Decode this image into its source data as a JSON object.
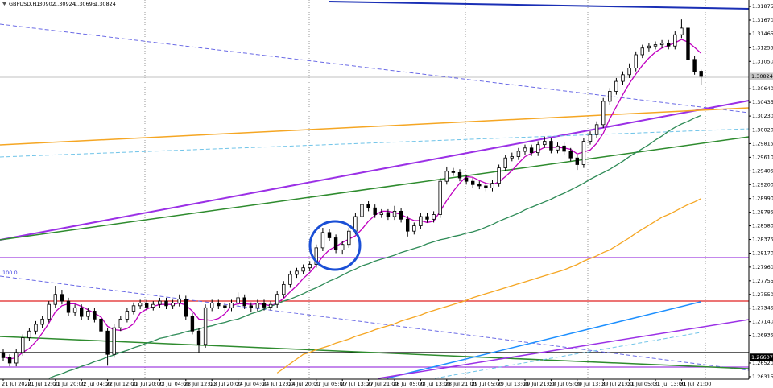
{
  "chart_data": {
    "type": "candlestick",
    "title": "GBPUSD,H1",
    "annotation": "100.0",
    "up_color": "#ffffff",
    "down_color": "#000000",
    "ylim": [
      1.2629,
      1.31972
    ],
    "yticks": [
      1.31875,
      {
        "value": 1.3167,
        "label": "1.31670"
      },
      1.31465,
      1.31255,
      {
        "value": 1.3105,
        "label": "1.31050"
      },
      {
        "value": 1.3064,
        "label": "1.30640"
      },
      1.30435,
      {
        "value": 1.3023,
        "label": "1.30230"
      },
      {
        "value": 1.3002,
        "label": "1.30020"
      },
      1.29815,
      {
        "value": 1.2961,
        "label": "1.29610"
      },
      1.29405,
      {
        "value": 1.292,
        "label": "1.29200"
      },
      {
        "value": 1.2899,
        "label": "1.28990"
      },
      1.28785,
      {
        "value": 1.2858,
        "label": "1.28580"
      },
      1.28375,
      {
        "value": 1.2817,
        "label": "1.28170"
      },
      {
        "value": 1.2796,
        "label": "1.27960"
      },
      1.27755,
      {
        "value": 1.2755,
        "label": "1.27550"
      },
      1.27345,
      {
        "value": 1.2714,
        "label": "1.27140"
      },
      1.26935,
      {
        "value": 1.2652,
        "label": "1.26520"
      },
      1.26315
    ],
    "price_markers": [
      {
        "value": 1.30824,
        "color": "#c8c8c8",
        "text_color": "#000000"
      },
      {
        "value": 1.26607,
        "color": "#000000",
        "text_color": "#ffffff"
      }
    ],
    "categories": [
      "21 Jul 2020",
      null,
      null,
      null,
      "21 Jul 12:00",
      null,
      null,
      null,
      "21 Jul 20:00",
      null,
      null,
      null,
      "22 Jul 04:00",
      null,
      null,
      null,
      "22 Jul 12:00",
      null,
      null,
      null,
      "22 Jul 20:00",
      null,
      null,
      null,
      "23 Jul 04:00",
      null,
      null,
      null,
      "23 Jul 12:00",
      null,
      null,
      null,
      "23 Jul 20:00",
      null,
      null,
      null,
      "24 Jul 04:00",
      null,
      null,
      null,
      "24 Jul 12:00",
      null,
      null,
      null,
      "24 Jul 20:00",
      null,
      null,
      null,
      "27 Jul 05:00",
      null,
      null,
      null,
      "27 Jul 13:00",
      null,
      null,
      null,
      "27 Jul 21:00",
      null,
      null,
      null,
      "28 Jul 05:00",
      null,
      null,
      null,
      "28 Jul 13:00",
      null,
      null,
      null,
      "28 Jul 21:00",
      null,
      null,
      null,
      "29 Jul 05:00",
      null,
      null,
      null,
      "29 Jul 13:00",
      null,
      null,
      null,
      "29 Jul 21:00",
      null,
      null,
      null,
      "30 Jul 05:00",
      null,
      null,
      null,
      "30 Jul 13:00",
      null,
      null,
      null,
      "30 Jul 21:00",
      null,
      null,
      null,
      "31 Jul 05:00",
      null,
      null,
      null,
      "31 Jul 13:00",
      null,
      null,
      null,
      "31 Jul 21:00",
      null,
      null,
      null
    ],
    "open": [
      1.2668,
      1.266,
      1.2652,
      1.2668,
      1.269,
      1.27,
      1.271,
      1.2718,
      1.274,
      1.2755,
      1.2745,
      1.2728,
      1.2735,
      1.2722,
      1.273,
      1.2718,
      1.27,
      1.2665,
      1.2705,
      1.2718,
      1.273,
      1.2738,
      1.2742,
      1.2736,
      1.274,
      1.2745,
      1.2738,
      1.2742,
      1.2748,
      1.2722,
      1.27,
      1.268,
      1.2735,
      1.2742,
      1.2738,
      1.2735,
      1.2742,
      1.275,
      1.2738,
      1.2735,
      1.2742,
      1.2736,
      1.274,
      1.2755,
      1.277,
      1.2785,
      1.279,
      1.2795,
      1.28,
      1.2825,
      1.2848,
      1.284,
      1.2822,
      1.283,
      1.285,
      1.2872,
      1.289,
      1.2885,
      1.2875,
      1.2878,
      1.2872,
      1.288,
      1.2868,
      1.285,
      1.2858,
      1.2872,
      1.2868,
      1.2875,
      1.2925,
      1.294,
      1.2938,
      1.293,
      1.2925,
      1.292,
      1.2918,
      1.2915,
      1.2922,
      1.2945,
      1.296,
      1.2962,
      1.297,
      1.2975,
      1.2968,
      1.298,
      1.2985,
      1.2972,
      1.2978,
      1.297,
      1.296,
      1.295,
      1.2985,
      1.2995,
      1.301,
      1.3045,
      1.306,
      1.3075,
      1.3085,
      1.3095,
      1.3115,
      1.3125,
      1.3128,
      1.313,
      1.3132,
      1.3128,
      1.3145,
      1.3155,
      1.3108,
      1.30902
    ],
    "high": [
      1.2673,
      1.2665,
      1.2673,
      1.2695,
      1.2705,
      1.2715,
      1.2723,
      1.2745,
      1.2768,
      1.2762,
      1.275,
      1.274,
      1.274,
      1.2735,
      1.2735,
      1.2723,
      1.2705,
      1.271,
      1.2723,
      1.2735,
      1.2743,
      1.2747,
      1.2747,
      1.2745,
      1.275,
      1.275,
      1.2747,
      1.2755,
      1.2753,
      1.2727,
      1.2705,
      1.274,
      1.2747,
      1.2747,
      1.2743,
      1.2747,
      1.2758,
      1.2755,
      1.2743,
      1.2747,
      1.2747,
      1.2745,
      1.276,
      1.2775,
      1.279,
      1.2795,
      1.28,
      1.2805,
      1.283,
      1.2855,
      1.2853,
      1.2845,
      1.2835,
      1.2855,
      1.2877,
      1.2898,
      1.2895,
      1.289,
      1.2883,
      1.2883,
      1.2888,
      1.2885,
      1.2873,
      1.2863,
      1.2877,
      1.2877,
      1.288,
      1.293,
      1.2947,
      1.2945,
      1.2943,
      1.2935,
      1.293,
      1.2925,
      1.2923,
      1.2927,
      1.295,
      1.2965,
      1.2968,
      1.2975,
      1.298,
      1.298,
      1.2985,
      1.2992,
      1.299,
      1.2983,
      1.2983,
      1.2975,
      1.2965,
      1.299,
      1.3,
      1.3015,
      1.305,
      1.3065,
      1.308,
      1.309,
      1.3102,
      1.312,
      1.313,
      1.3133,
      1.3135,
      1.3137,
      1.3137,
      1.315,
      1.3168,
      1.316,
      1.3113,
      1.30924
    ],
    "low": [
      1.2655,
      1.2647,
      1.2647,
      1.2663,
      1.2685,
      1.2695,
      1.2705,
      1.2713,
      1.2735,
      1.274,
      1.2723,
      1.2723,
      1.2717,
      1.2717,
      1.2713,
      1.2695,
      1.2648,
      1.266,
      1.27,
      1.2713,
      1.2725,
      1.2733,
      1.2731,
      1.2731,
      1.2735,
      1.2733,
      1.2733,
      1.2737,
      1.2717,
      1.2695,
      1.2668,
      1.2675,
      1.273,
      1.2733,
      1.273,
      1.273,
      1.2737,
      1.2733,
      1.2728,
      1.273,
      1.2731,
      1.2731,
      1.2735,
      1.275,
      1.2765,
      1.278,
      1.2785,
      1.279,
      1.2795,
      1.282,
      1.2835,
      1.2817,
      1.2815,
      1.2825,
      1.2845,
      1.2867,
      1.288,
      1.287,
      1.287,
      1.2867,
      1.2867,
      1.2863,
      1.2842,
      1.2845,
      1.2853,
      1.2863,
      1.2863,
      1.287,
      1.292,
      1.2933,
      1.2925,
      1.292,
      1.2915,
      1.2913,
      1.291,
      1.291,
      1.2917,
      1.294,
      1.2955,
      1.2957,
      1.2965,
      1.2963,
      1.2963,
      1.2975,
      1.2967,
      1.2967,
      1.2965,
      1.2955,
      1.2942,
      1.2945,
      1.298,
      1.299,
      1.3005,
      1.304,
      1.3055,
      1.307,
      1.308,
      1.309,
      1.311,
      1.312,
      1.3123,
      1.3125,
      1.3123,
      1.3123,
      1.314,
      1.3103,
      1.3085,
      1.30695
    ],
    "close": [
      1.266,
      1.2652,
      1.2668,
      1.269,
      1.27,
      1.271,
      1.2718,
      1.274,
      1.2755,
      1.2745,
      1.2728,
      1.2735,
      1.2722,
      1.273,
      1.2718,
      1.27,
      1.2665,
      1.2705,
      1.2718,
      1.273,
      1.2738,
      1.2742,
      1.2736,
      1.274,
      1.2745,
      1.2738,
      1.2742,
      1.2748,
      1.2722,
      1.27,
      1.268,
      1.2735,
      1.2742,
      1.2738,
      1.2735,
      1.2742,
      1.275,
      1.2738,
      1.2735,
      1.2742,
      1.2736,
      1.274,
      1.2755,
      1.277,
      1.2785,
      1.279,
      1.2795,
      1.28,
      1.2825,
      1.2848,
      1.284,
      1.2822,
      1.283,
      1.285,
      1.2872,
      1.289,
      1.2885,
      1.2875,
      1.2878,
      1.2872,
      1.288,
      1.2868,
      1.285,
      1.2858,
      1.2872,
      1.2868,
      1.2875,
      1.2925,
      1.294,
      1.2938,
      1.293,
      1.2925,
      1.292,
      1.2918,
      1.2915,
      1.2922,
      1.2945,
      1.296,
      1.2962,
      1.297,
      1.2975,
      1.2968,
      1.298,
      1.2985,
      1.2972,
      1.2978,
      1.297,
      1.296,
      1.295,
      1.2985,
      1.2995,
      1.301,
      1.3045,
      1.306,
      1.3075,
      1.3085,
      1.3095,
      1.3115,
      1.3125,
      1.3128,
      1.313,
      1.3132,
      1.3128,
      1.3145,
      1.3155,
      1.3108,
      1.309,
      1.30824
    ],
    "series": [
      {
        "color": "#c000c0",
        "values": [
          1.2662,
          1.2658,
          1.266,
          1.2668,
          1.2674,
          1.2684,
          1.2697,
          1.2712,
          1.2729,
          1.2738,
          1.2741,
          1.2741,
          1.2737,
          1.2732,
          1.2727,
          1.2721,
          1.2707,
          1.2702,
          1.2701,
          1.2704,
          1.2711,
          1.2727,
          1.2733,
          1.2737,
          1.274,
          1.274,
          1.274,
          1.2742,
          1.2739,
          1.273,
          1.2718,
          1.2717,
          1.2716,
          1.2719,
          1.2726,
          1.2738,
          1.2741,
          1.2741,
          1.274,
          1.2741,
          1.274,
          1.2738,
          1.2742,
          1.2749,
          1.2759,
          1.2768,
          1.2779,
          1.2788,
          1.2799,
          1.2812,
          1.2822,
          1.2827,
          1.2833,
          1.2838,
          1.2843,
          1.2853,
          1.2865,
          1.2874,
          1.288,
          1.288,
          1.2878,
          1.2875,
          1.287,
          1.2866,
          1.2866,
          1.2863,
          1.2865,
          1.288,
          1.2896,
          1.291,
          1.2922,
          1.2932,
          1.2931,
          1.2926,
          1.2922,
          1.292,
          1.2924,
          1.2932,
          1.2941,
          1.2952,
          1.2962,
          1.2967,
          1.2971,
          1.2976,
          1.2976,
          1.2976,
          1.2975,
          1.2973,
          1.2966,
          1.2969,
          1.2972,
          1.2982,
          1.2997,
          1.3019,
          1.3037,
          1.3055,
          1.3072,
          1.3086,
          1.3099,
          1.311,
          1.3119,
          1.3125,
          1.3129,
          1.3133,
          1.3138,
          1.3134,
          1.3126,
          1.3117
        ]
      },
      {
        "color": "#2e8b57",
        "values": [
          null,
          null,
          null,
          null,
          null,
          null,
          null,
          1.2629,
          1.2633,
          1.2636,
          1.264,
          1.2643,
          1.2647,
          1.265,
          1.2654,
          1.2657,
          1.2661,
          1.2664,
          1.2668,
          1.2671,
          1.2675,
          1.2678,
          1.2682,
          1.2685,
          1.2689,
          1.2691,
          1.2694,
          1.2696,
          1.2699,
          1.2701,
          1.2703,
          1.2706,
          1.2708,
          1.2711,
          1.2713,
          1.2716,
          1.2718,
          1.2722,
          1.2726,
          1.2729,
          1.2733,
          1.2737,
          1.2741,
          1.2745,
          1.2748,
          1.2752,
          1.2756,
          1.2761,
          1.2765,
          1.277,
          1.2775,
          1.2779,
          1.2784,
          1.2789,
          1.2793,
          1.2798,
          1.2801,
          1.2805,
          1.2808,
          1.2811,
          1.2814,
          1.2818,
          1.2821,
          1.2824,
          1.2827,
          1.2831,
          1.2834,
          1.2837,
          1.2839,
          1.2842,
          1.2844,
          1.2847,
          1.2849,
          1.2852,
          1.2856,
          1.286,
          1.2865,
          1.2869,
          1.2873,
          1.2877,
          1.2882,
          1.2886,
          1.289,
          1.2894,
          1.2898,
          1.2903,
          1.2907,
          1.2912,
          1.2917,
          1.2922,
          1.2928,
          1.2933,
          1.2938,
          1.2943,
          1.2949,
          1.2955,
          1.2962,
          1.2968,
          1.2974,
          1.298,
          1.2987,
          1.2993,
          1.3,
          1.3006,
          1.3011,
          1.3015,
          1.302,
          1.3024
        ]
      },
      {
        "color": "#f5a623",
        "values": [
          null,
          null,
          null,
          null,
          null,
          null,
          null,
          null,
          null,
          null,
          null,
          null,
          null,
          null,
          null,
          null,
          null,
          null,
          null,
          null,
          null,
          null,
          null,
          null,
          null,
          null,
          null,
          null,
          null,
          null,
          null,
          null,
          null,
          null,
          null,
          null,
          null,
          null,
          null,
          null,
          null,
          null,
          1.2637,
          1.2644,
          1.2651,
          1.2658,
          1.2665,
          1.2668,
          1.2672,
          1.2675,
          1.2678,
          1.2682,
          1.2685,
          1.2688,
          1.2692,
          1.2695,
          1.2698,
          1.2702,
          1.2705,
          1.2708,
          1.2711,
          1.2715,
          1.2718,
          1.2721,
          1.2724,
          1.2728,
          1.2731,
          1.2734,
          1.2737,
          1.274,
          1.2743,
          1.2746,
          1.275,
          1.2753,
          1.2756,
          1.2759,
          1.2762,
          1.2765,
          1.2768,
          1.2771,
          1.2774,
          1.2777,
          1.278,
          1.2783,
          1.2786,
          1.2789,
          1.2792,
          1.2796,
          1.28,
          1.2805,
          1.2809,
          1.2813,
          1.2818,
          1.2822,
          1.2828,
          1.2834,
          1.284,
          1.2847,
          1.2853,
          1.2859,
          1.2865,
          1.2871,
          1.2875,
          1.288,
          1.2885,
          1.289,
          1.2894,
          1.2899
        ]
      }
    ]
  }
}
